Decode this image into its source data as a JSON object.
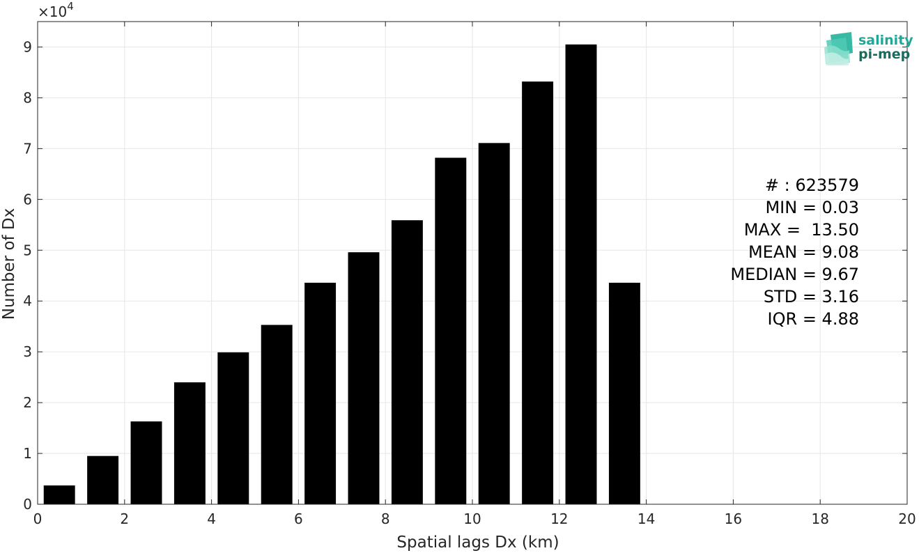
{
  "chart_data": {
    "type": "bar",
    "xlabel": "Spatial lags Dx (km)",
    "ylabel": "Number of Dx",
    "y_exponent_base": "×10",
    "y_exponent_power": "4",
    "xlim": [
      0,
      20
    ],
    "ylim": [
      0,
      9.5
    ],
    "y_scale_factor": 10000,
    "grid": true,
    "bar_color": "#000000",
    "bar_width": 0.72,
    "x_ticks": [
      0,
      2,
      4,
      6,
      8,
      10,
      12,
      14,
      16,
      18,
      20
    ],
    "y_ticks": [
      0,
      1,
      2,
      3,
      4,
      5,
      6,
      7,
      8,
      9
    ],
    "bins": [
      {
        "center": 0.5,
        "value": 0.37
      },
      {
        "center": 1.5,
        "value": 0.95
      },
      {
        "center": 2.5,
        "value": 1.63
      },
      {
        "center": 3.5,
        "value": 2.4
      },
      {
        "center": 4.5,
        "value": 2.99
      },
      {
        "center": 5.5,
        "value": 3.53
      },
      {
        "center": 6.5,
        "value": 4.36
      },
      {
        "center": 7.5,
        "value": 4.96
      },
      {
        "center": 8.5,
        "value": 5.59
      },
      {
        "center": 9.5,
        "value": 6.82
      },
      {
        "center": 10.5,
        "value": 7.11
      },
      {
        "center": 11.5,
        "value": 8.32
      },
      {
        "center": 12.5,
        "value": 9.05
      },
      {
        "center": 13.5,
        "value": 4.36
      }
    ],
    "annotations": [
      "# : 623579",
      "MIN = 0.03",
      "MAX =  13.50",
      "MEAN = 9.08",
      "MEDIAN = 9.67",
      "STD = 3.16",
      "IQR = 4.88"
    ]
  },
  "logo": {
    "line1": "salinity",
    "line2": "pi-mep",
    "color1": "#1fa896",
    "color2": "#1a6b5e"
  }
}
